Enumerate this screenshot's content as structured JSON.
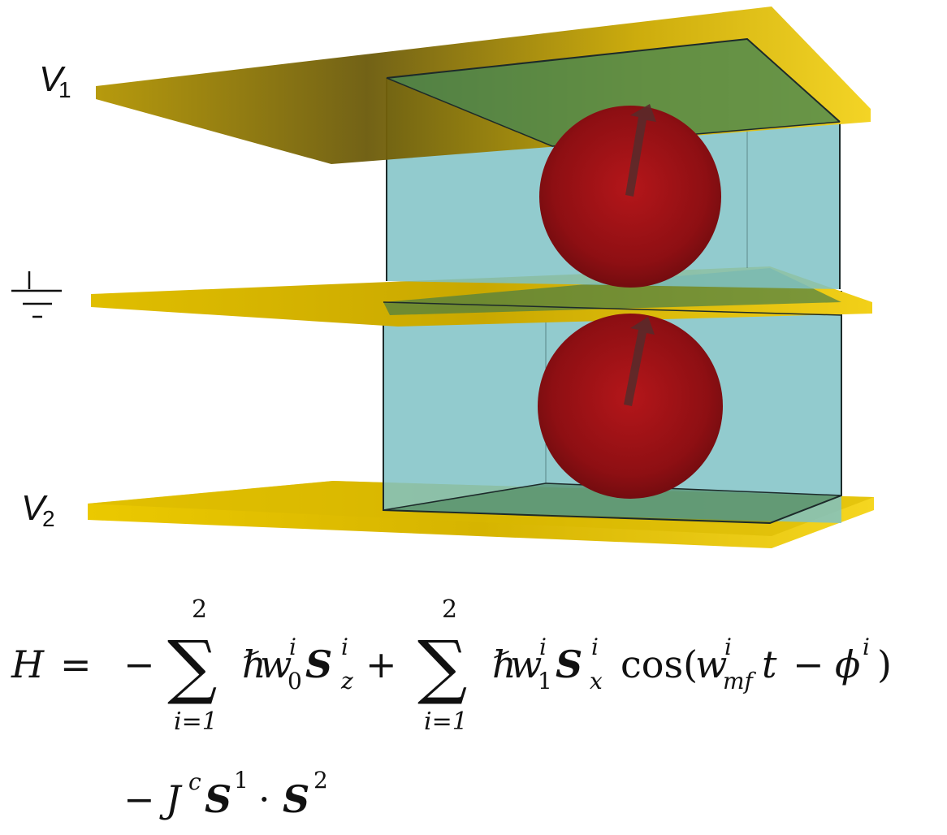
{
  "labels": {
    "v1": {
      "main": "V",
      "sub": "1"
    },
    "v2": {
      "main": "V",
      "sub": "2"
    },
    "ground": "ground-symbol"
  },
  "colors": {
    "electrode": "#e9c400",
    "electrode_dark": "#6f5a00",
    "cavity": "#7fc2c5",
    "cavity_top": "#4f8a56",
    "sphere": "#a01414",
    "arrow": "#5a2a2a"
  },
  "equation": {
    "line1": {
      "lhs": "H",
      "eq": "=",
      "minus": "−",
      "sum_top": "2",
      "sum_bottom": "i=1",
      "sum_symbol": "∑",
      "hbar": "ℏ",
      "w": "w",
      "w0_sup": "i",
      "w0_sub": "0",
      "S": "S",
      "Sz_sup": "i",
      "Sz_sub": "z",
      "plus": "+",
      "sum2_top": "2",
      "sum2_bottom": "i=1",
      "w1_sup": "i",
      "w1_sub": "1",
      "Sx_sup": "i",
      "Sx_sub": "x",
      "cos": "cos(",
      "wmf_sup": "i",
      "wmf_sub": "mf",
      "t": "t",
      "minus2": "−",
      "phi": "ϕ",
      "phi_sup": "i",
      "close": ")"
    },
    "line2": {
      "minus": "−",
      "J": "J",
      "J_sup": "c",
      "S1": "S",
      "S1_sup": "1",
      "dot": "·",
      "S2": "S",
      "S2_sup": "2"
    }
  }
}
